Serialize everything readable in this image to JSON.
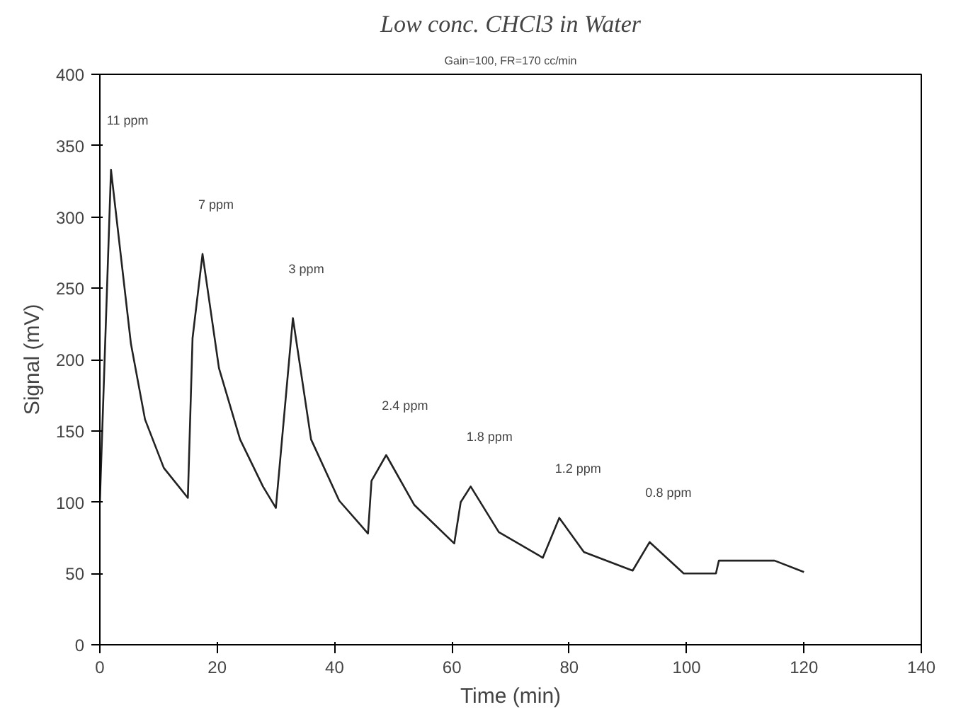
{
  "chart_data": {
    "type": "line",
    "title": "Low conc. CHCl3 in Water",
    "subtitle": "Gain=100, FR=170 cc/min",
    "xlabel": "Time (min)",
    "ylabel": "Signal (mV)",
    "xlim": [
      0,
      140
    ],
    "ylim": [
      0,
      400
    ],
    "xticks": [
      0,
      20,
      40,
      60,
      80,
      100,
      120,
      140
    ],
    "yticks": [
      0,
      50,
      100,
      150,
      200,
      250,
      300,
      350,
      400
    ],
    "grid": false,
    "marker": "none",
    "line_style": "solid",
    "series": [
      {
        "color": "#222222",
        "x": [
          0,
          1.9,
          5.3,
          7.7,
          10.9,
          15,
          15.8,
          17.5,
          20.3,
          23.9,
          27.8,
          30,
          32.9,
          36,
          40.8,
          45.7,
          46.3,
          48.8,
          53.6,
          60.4,
          61.5,
          63.2,
          68,
          75.5,
          78.3,
          82.5,
          90.8,
          93.7,
          99.5,
          105,
          105.5,
          115,
          120
        ],
        "values": [
          100,
          333,
          211,
          158,
          124,
          103,
          215,
          274,
          194,
          144,
          111,
          96,
          229,
          144,
          101,
          78,
          115,
          133,
          98,
          71,
          100,
          111,
          79,
          61,
          89,
          65,
          52,
          72,
          50,
          50,
          59,
          59,
          51
        ]
      }
    ],
    "annotations": [
      "11 ppm",
      "7 ppm",
      "3 ppm",
      "2.4 ppm",
      "1.8 ppm",
      "1.2 ppm",
      "0.8 ppm"
    ]
  }
}
